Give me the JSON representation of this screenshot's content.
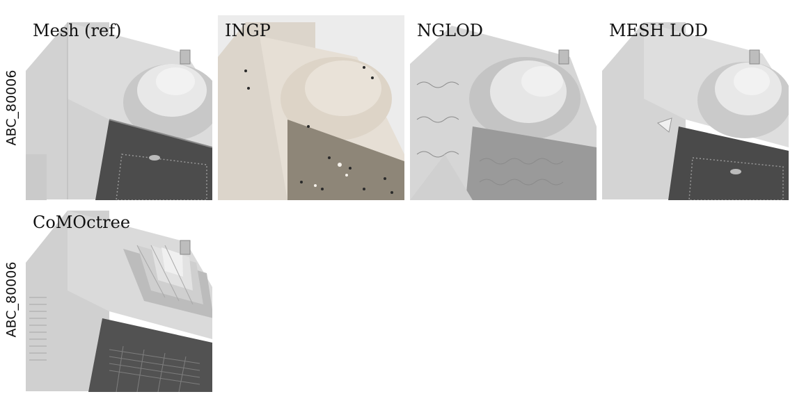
{
  "figure": {
    "rows": [
      {
        "label": "ABC_80006",
        "panels": [
          {
            "caption": "Mesh (ref)",
            "style": "reference-mesh",
            "background": "#ffffff"
          },
          {
            "caption": "INGP",
            "style": "instant-ngp-render",
            "background": "#ececec"
          },
          {
            "caption": "NGLOD",
            "style": "nglod-bumpy-surface",
            "background": "#ffffff"
          },
          {
            "caption": "MESH LOD",
            "style": "mesh-lod",
            "background": "#ffffff"
          }
        ]
      },
      {
        "label": "ABC_80006",
        "panels": [
          {
            "caption": "CoMOctree",
            "style": "octree-render",
            "background": "#ffffff"
          }
        ]
      }
    ],
    "colors": {
      "light_face": "#d4d4d4",
      "dark_face": "#4a4a4a",
      "beige_face": "#e0d9d0",
      "ink": "#111111"
    }
  }
}
